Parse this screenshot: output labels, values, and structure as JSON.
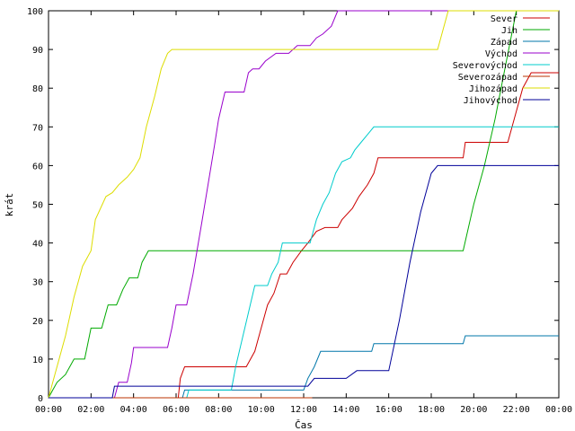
{
  "chart_data": {
    "type": "line",
    "xlabel": "Čas",
    "ylabel": "krát",
    "xlim": [
      0,
      24
    ],
    "ylim": [
      0,
      100
    ],
    "x_ticks": [
      "00:00",
      "02:00",
      "04:00",
      "06:00",
      "08:00",
      "10:00",
      "12:00",
      "14:00",
      "16:00",
      "18:00",
      "20:00",
      "22:00",
      "00:00"
    ],
    "y_ticks": [
      0,
      10,
      20,
      30,
      40,
      50,
      60,
      70,
      80,
      90,
      100
    ],
    "grid": false,
    "legend_position": "top-right",
    "series": [
      {
        "name": "Sever",
        "color": "#cc0000",
        "points": [
          [
            0,
            0
          ],
          [
            6.1,
            0
          ],
          [
            6.2,
            5
          ],
          [
            6.4,
            8
          ],
          [
            8.8,
            8
          ],
          [
            9.3,
            8
          ],
          [
            9.7,
            12
          ],
          [
            10.0,
            18
          ],
          [
            10.3,
            24
          ],
          [
            10.6,
            27
          ],
          [
            10.9,
            32
          ],
          [
            11.2,
            32
          ],
          [
            11.5,
            35
          ],
          [
            11.9,
            38
          ],
          [
            12.2,
            40
          ],
          [
            12.6,
            43
          ],
          [
            13.0,
            44
          ],
          [
            13.6,
            44
          ],
          [
            13.8,
            46
          ],
          [
            14.3,
            49
          ],
          [
            14.6,
            52
          ],
          [
            15.0,
            55
          ],
          [
            15.3,
            58
          ],
          [
            15.5,
            62
          ],
          [
            19.5,
            62
          ],
          [
            19.6,
            66
          ],
          [
            21.6,
            66
          ],
          [
            22.3,
            80
          ],
          [
            22.7,
            84
          ],
          [
            24,
            84
          ]
        ]
      },
      {
        "name": "Jih",
        "color": "#00aa00",
        "points": [
          [
            0,
            0
          ],
          [
            0.2,
            2
          ],
          [
            0.4,
            4
          ],
          [
            0.8,
            6
          ],
          [
            1.2,
            10
          ],
          [
            1.7,
            10
          ],
          [
            2.0,
            18
          ],
          [
            2.5,
            18
          ],
          [
            2.8,
            24
          ],
          [
            3.2,
            24
          ],
          [
            3.5,
            28
          ],
          [
            3.8,
            31
          ],
          [
            4.2,
            31
          ],
          [
            4.4,
            35
          ],
          [
            4.7,
            38
          ],
          [
            19.5,
            38
          ],
          [
            20.0,
            50
          ],
          [
            20.5,
            60
          ],
          [
            21.0,
            72
          ],
          [
            21.5,
            86
          ],
          [
            22.0,
            100
          ],
          [
            24,
            100
          ]
        ]
      },
      {
        "name": "Západ",
        "color": "#0077aa",
        "points": [
          [
            0,
            0
          ],
          [
            6.3,
            0
          ],
          [
            6.4,
            2
          ],
          [
            12.0,
            2
          ],
          [
            12.2,
            5
          ],
          [
            12.5,
            8
          ],
          [
            12.8,
            12
          ],
          [
            15.2,
            12
          ],
          [
            15.3,
            14
          ],
          [
            19.5,
            14
          ],
          [
            19.6,
            16
          ],
          [
            24,
            16
          ]
        ]
      },
      {
        "name": "Východ",
        "color": "#9900cc",
        "points": [
          [
            0,
            0
          ],
          [
            3.1,
            0
          ],
          [
            3.3,
            4
          ],
          [
            3.7,
            4
          ],
          [
            3.9,
            9
          ],
          [
            4.0,
            13
          ],
          [
            5.6,
            13
          ],
          [
            5.8,
            18
          ],
          [
            6.0,
            24
          ],
          [
            6.5,
            24
          ],
          [
            6.8,
            32
          ],
          [
            7.2,
            45
          ],
          [
            7.5,
            55
          ],
          [
            7.8,
            65
          ],
          [
            8.0,
            72
          ],
          [
            8.3,
            79
          ],
          [
            9.2,
            79
          ],
          [
            9.4,
            84
          ],
          [
            9.6,
            85
          ],
          [
            9.9,
            85
          ],
          [
            10.2,
            87
          ],
          [
            10.7,
            89
          ],
          [
            11.3,
            89
          ],
          [
            11.7,
            91
          ],
          [
            12.3,
            91
          ],
          [
            12.6,
            93
          ],
          [
            12.9,
            94
          ],
          [
            13.3,
            96
          ],
          [
            13.6,
            100
          ],
          [
            24,
            100
          ]
        ]
      },
      {
        "name": "Severovýchod",
        "color": "#00cccc",
        "points": [
          [
            0,
            0
          ],
          [
            6.5,
            0
          ],
          [
            6.6,
            2
          ],
          [
            8.6,
            2
          ],
          [
            8.8,
            8
          ],
          [
            9.1,
            15
          ],
          [
            9.4,
            22
          ],
          [
            9.7,
            29
          ],
          [
            10.3,
            29
          ],
          [
            10.5,
            32
          ],
          [
            10.8,
            35
          ],
          [
            11.0,
            40
          ],
          [
            12.3,
            40
          ],
          [
            12.6,
            46
          ],
          [
            12.9,
            50
          ],
          [
            13.2,
            53
          ],
          [
            13.5,
            58
          ],
          [
            13.8,
            61
          ],
          [
            14.2,
            62
          ],
          [
            14.4,
            64
          ],
          [
            14.7,
            66
          ],
          [
            15.0,
            68
          ],
          [
            15.3,
            70
          ],
          [
            24,
            70
          ]
        ]
      },
      {
        "name": "Severozápad",
        "color": "#bb3300",
        "points": [
          [
            0,
            0
          ],
          [
            12.4,
            0
          ]
        ]
      },
      {
        "name": "Jihozápad",
        "color": "#dddd00",
        "points": [
          [
            0,
            0
          ],
          [
            0.2,
            4
          ],
          [
            0.5,
            10
          ],
          [
            0.8,
            16
          ],
          [
            1.2,
            26
          ],
          [
            1.6,
            34
          ],
          [
            2.0,
            38
          ],
          [
            2.2,
            46
          ],
          [
            2.7,
            52
          ],
          [
            3.0,
            53
          ],
          [
            3.3,
            55
          ],
          [
            3.7,
            57
          ],
          [
            4.0,
            59
          ],
          [
            4.3,
            62
          ],
          [
            4.6,
            70
          ],
          [
            5.0,
            78
          ],
          [
            5.3,
            85
          ],
          [
            5.6,
            89
          ],
          [
            5.8,
            90
          ],
          [
            18.3,
            90
          ],
          [
            18.8,
            100
          ],
          [
            24,
            100
          ]
        ]
      },
      {
        "name": "Jihovýchod",
        "color": "#000099",
        "points": [
          [
            0,
            0
          ],
          [
            3.0,
            0
          ],
          [
            3.1,
            3
          ],
          [
            12.2,
            3
          ],
          [
            12.5,
            5
          ],
          [
            14.0,
            5
          ],
          [
            14.5,
            7
          ],
          [
            16.0,
            7
          ],
          [
            16.5,
            20
          ],
          [
            17.0,
            35
          ],
          [
            17.5,
            48
          ],
          [
            18.0,
            58
          ],
          [
            18.3,
            60
          ],
          [
            24,
            60
          ]
        ]
      }
    ]
  }
}
